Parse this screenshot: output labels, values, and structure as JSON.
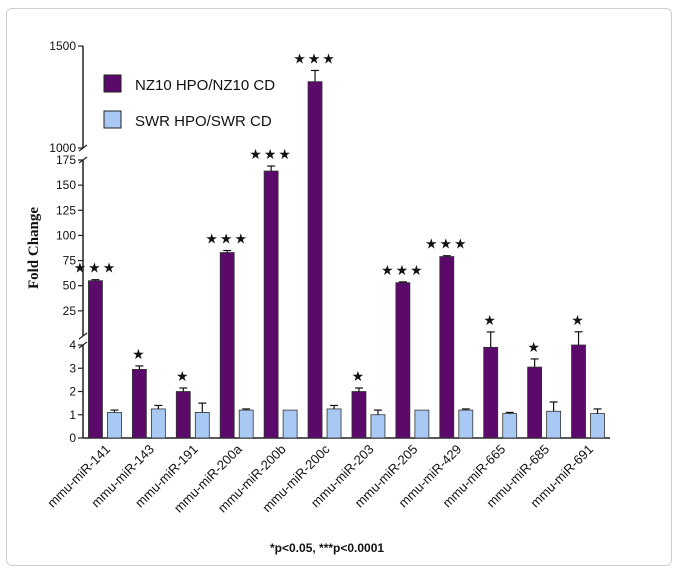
{
  "chart_data": {
    "type": "bar",
    "ylabel": "Fold Change",
    "categories": [
      "mmu-miR-141",
      "mmu-miR-143",
      "mmu-miR-191",
      "mmu-miR-200a",
      "mmu-miR-200b",
      "mmu-miR-200c",
      "mmu-miR-203",
      "mmu-miR-205",
      "mmu-miR-429",
      "mmu-miR-665",
      "mmu-miR-685",
      "mmu-miR-691"
    ],
    "series": [
      {
        "name": "NZ10 HPO/NZ10 CD",
        "color": "#5b0a6b",
        "values": [
          55,
          2.95,
          2.0,
          83,
          164,
          1325,
          2.0,
          53,
          79,
          3.9,
          3.05,
          4.0
        ],
        "errors": [
          1,
          0.15,
          0.15,
          2,
          5,
          55,
          0.15,
          0.8,
          0.8,
          0.15,
          0.35,
          0.2
        ]
      },
      {
        "name": "SWR HPO/SWR CD",
        "color": "#a9c9f5",
        "values": [
          1.1,
          1.25,
          1.1,
          1.2,
          1.2,
          1.25,
          1.0,
          1.2,
          1.2,
          1.05,
          1.15,
          1.05
        ],
        "errors": [
          0.1,
          0.15,
          0.4,
          0.05,
          0.0,
          0.15,
          0.2,
          0.0,
          0.05,
          0.05,
          0.4,
          0.2
        ]
      }
    ],
    "significance": [
      "★★★",
      "★",
      "★",
      "★★★",
      "★★★",
      "★★★",
      "★",
      "★★★",
      "★★★",
      "★",
      "★",
      "★"
    ],
    "axis_segments": {
      "lower": {
        "range": [
          0,
          4
        ],
        "ticks": [
          "0",
          "1",
          "2",
          "3",
          "4"
        ]
      },
      "middle": {
        "range": [
          0,
          175
        ],
        "ticks": [
          "25",
          "50",
          "75",
          "100",
          "125",
          "150",
          "175"
        ]
      },
      "upper": {
        "range": [
          1000,
          1500
        ],
        "ticks": [
          "1000",
          "1500"
        ]
      }
    },
    "footnote": "*p<0.05, ***p<0.0001"
  }
}
